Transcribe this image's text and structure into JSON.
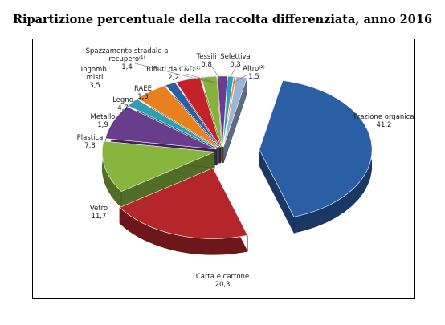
{
  "title": "Ripartizione percentuale della raccolta differenziata, anno 2016",
  "chart_data": {
    "type": "pie",
    "title": "Ripartizione percentuale della raccolta differenziata, anno 2016",
    "slices": [
      {
        "label": "Frazione organica",
        "value": 41.2,
        "value_text": "41,2",
        "color": "#2a5fa6"
      },
      {
        "label": "Carta e cartone",
        "value": 20.3,
        "value_text": "20,3",
        "color": "#b5262b"
      },
      {
        "label": "Vetro",
        "value": 11.7,
        "value_text": "11,7",
        "color": "#88b53e"
      },
      {
        "label": "Plastica",
        "value": 7.8,
        "value_text": "7,8",
        "color": "#6a3c8c"
      },
      {
        "label": "Metallo",
        "value": 1.9,
        "value_text": "1,9",
        "color": "#2e9eb4"
      },
      {
        "label": "Legno",
        "value": 4.7,
        "value_text": "4,7",
        "color": "#e8801e"
      },
      {
        "label": "RAEE",
        "value": 1.5,
        "value_text": "1,5",
        "color": "#2a5fa6"
      },
      {
        "label": "Ingomb. misti",
        "value": 3.5,
        "value_text": "3,5",
        "color": "#c42228"
      },
      {
        "label": "Rifiuti da C&D⁽¹⁾",
        "value": 2.2,
        "value_text": "2,2",
        "color": "#86b23c"
      },
      {
        "label": "Spazzamento stradale a recupero⁽¹⁾",
        "value": 1.4,
        "value_text": "1,4",
        "color": "#6b3d90"
      },
      {
        "label": "Tessili",
        "value": 0.8,
        "value_text": "0,8",
        "color": "#2aa3c2"
      },
      {
        "label": "Selettiva",
        "value": 0.3,
        "value_text": "0,3",
        "color": "#ef8a1e"
      },
      {
        "label": "Altro⁽²⁾",
        "value": 1.5,
        "value_text": "1,5",
        "color": "#9cb4d8"
      }
    ]
  }
}
